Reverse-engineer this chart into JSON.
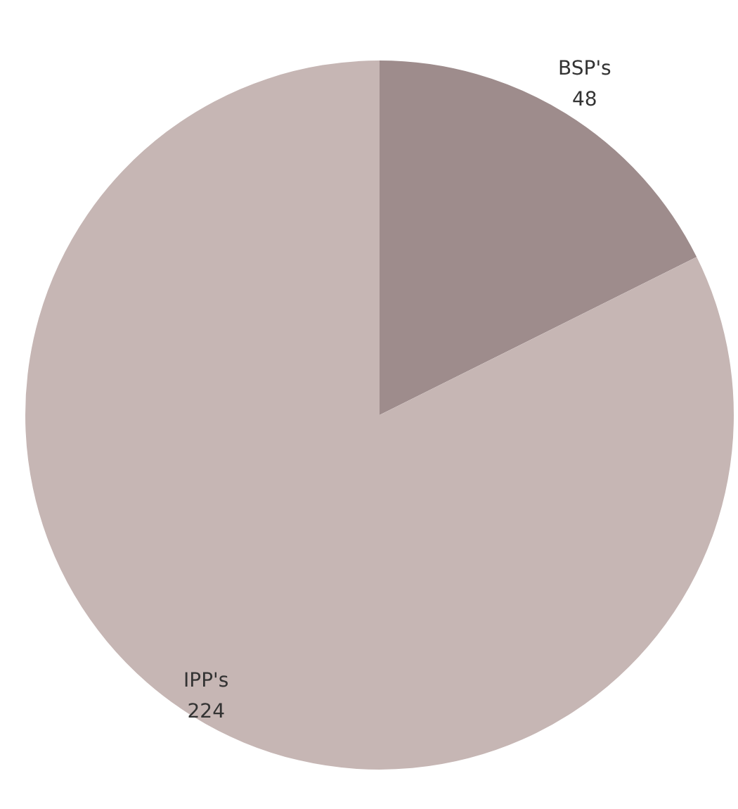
{
  "chart_data": {
    "type": "pie",
    "categories": [
      "BSP's",
      "IPP's"
    ],
    "values": [
      48,
      224
    ],
    "colors": [
      "#9e8c8c",
      "#c6b6b4"
    ],
    "data_labels": true,
    "legend": false
  }
}
